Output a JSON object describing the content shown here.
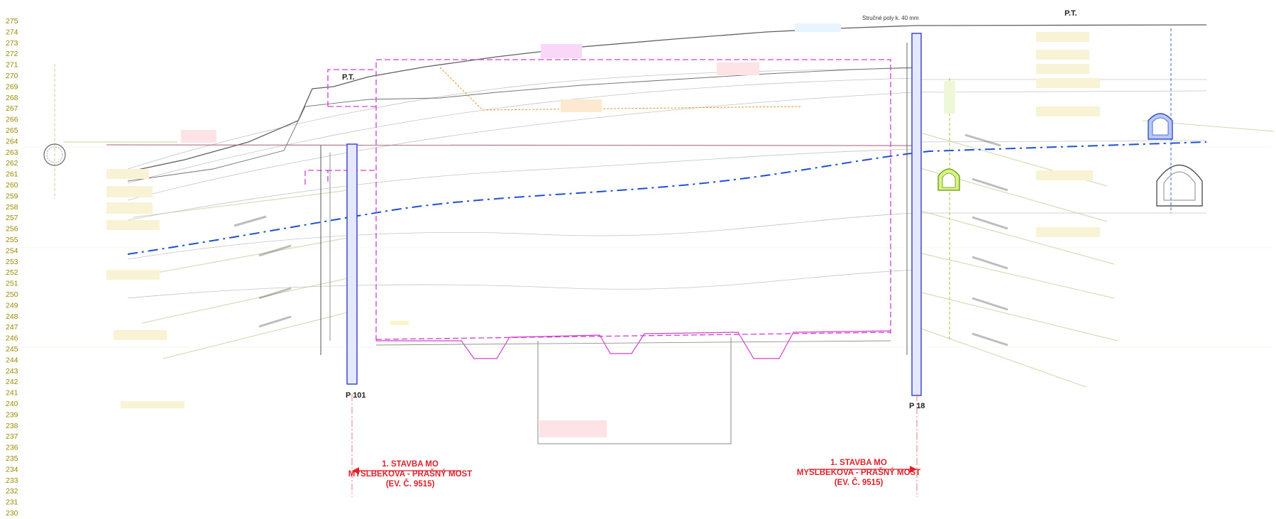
{
  "elevation_axis": {
    "labels": [
      "275",
      "274",
      "273",
      "272",
      "271",
      "270",
      "269",
      "268",
      "267",
      "266",
      "265",
      "264",
      "263",
      "262",
      "261",
      "260",
      "259",
      "258",
      "257",
      "256",
      "255",
      "254",
      "253",
      "252",
      "251",
      "250",
      "249",
      "248",
      "247",
      "246",
      "245",
      "244",
      "243",
      "242",
      "241",
      "240",
      "239",
      "238",
      "237",
      "236",
      "235",
      "234",
      "233",
      "232",
      "231",
      "230"
    ]
  },
  "terrain_labels": {
    "left": "P.T.",
    "right": "P.T."
  },
  "boreholes": {
    "left": "P 101",
    "right": "P 18"
  },
  "top_note": "Stručné poly k. 40 mm",
  "construction_notes": {
    "left": {
      "line1": "1. STAVBA MO",
      "line2": "MYSLBEKOVA - PRAŠNÝ MOST",
      "line3": "(EV. Č. 9515)"
    },
    "right": {
      "line1": "1. STAVBA MO",
      "line2": "MYSLBEKOVA - PRAŠNÝ MOST",
      "line3": "(EV. Č. 9515)"
    }
  },
  "colors": {
    "axis_text": "#9a8a00",
    "construction_red": "#e0202a",
    "magenta_outline": "#d040d0",
    "groundwater_blue": "#2050d0",
    "borehole_blue": "#3040c0",
    "tunnel_green": "#8ab800",
    "anchor_lines": "#d8dcb8",
    "terrain_line": "#606060"
  }
}
